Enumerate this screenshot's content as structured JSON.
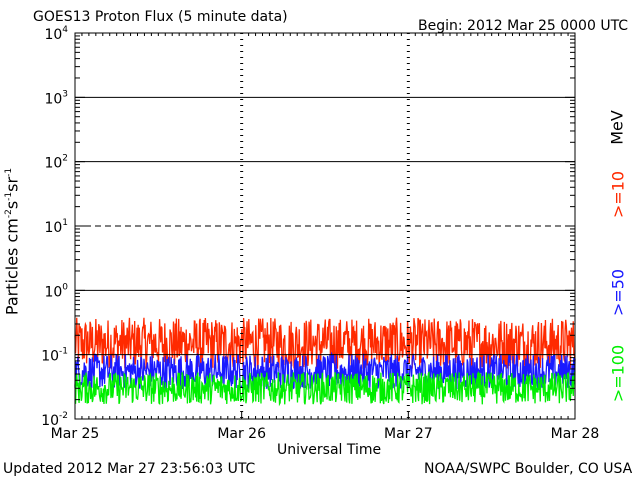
{
  "header": {
    "title": "GOES13 Proton Flux (5 minute data)",
    "begin": "Begin: 2012 Mar 25 0000 UTC"
  },
  "footer": {
    "updated": "Updated 2012 Mar 27 23:56:03 UTC",
    "credit": "NOAA/SWPC Boulder, CO USA"
  },
  "chart_data": {
    "type": "line",
    "title": "GOES13 Proton Flux (5 minute data)",
    "xlabel": "Universal Time",
    "ylabel": "Particles cm-2s-1sr-1",
    "y_scale": "log",
    "ylim": [
      0.01,
      10000
    ],
    "x_ticks": [
      "Mar 25",
      "Mar 26",
      "Mar 27",
      "Mar 28"
    ],
    "y_ticks": [
      {
        "value": 0.01,
        "base": "10",
        "exp": "-2"
      },
      {
        "value": 0.1,
        "base": "10",
        "exp": "-1"
      },
      {
        "value": 1,
        "base": "10",
        "exp": "0"
      },
      {
        "value": 10,
        "base": "10",
        "exp": "1"
      },
      {
        "value": 100,
        "base": "10",
        "exp": "2"
      },
      {
        "value": 1000,
        "base": "10",
        "exp": "3"
      },
      {
        "value": 10000,
        "base": "10",
        "exp": "4"
      }
    ],
    "grid": true,
    "threshold_lines": [
      {
        "value": 1000,
        "style": "solid"
      },
      {
        "value": 100,
        "style": "solid"
      },
      {
        "value": 10,
        "style": "dashed"
      },
      {
        "value": 1,
        "style": "solid"
      },
      {
        "value": 0.1,
        "style": "solid"
      }
    ],
    "legend": {
      "unit": "MeV",
      "placement": "right"
    },
    "series": [
      {
        "name": ">=10",
        "color": "#ff2a00",
        "baseline": 0.15,
        "spread": 0.8,
        "samples": 864
      },
      {
        "name": ">=50",
        "color": "#1a1aff",
        "baseline": 0.055,
        "spread": 0.55,
        "samples": 864
      },
      {
        "name": ">=100",
        "color": "#00ee00",
        "baseline": 0.03,
        "spread": 0.5,
        "samples": 864
      }
    ]
  }
}
